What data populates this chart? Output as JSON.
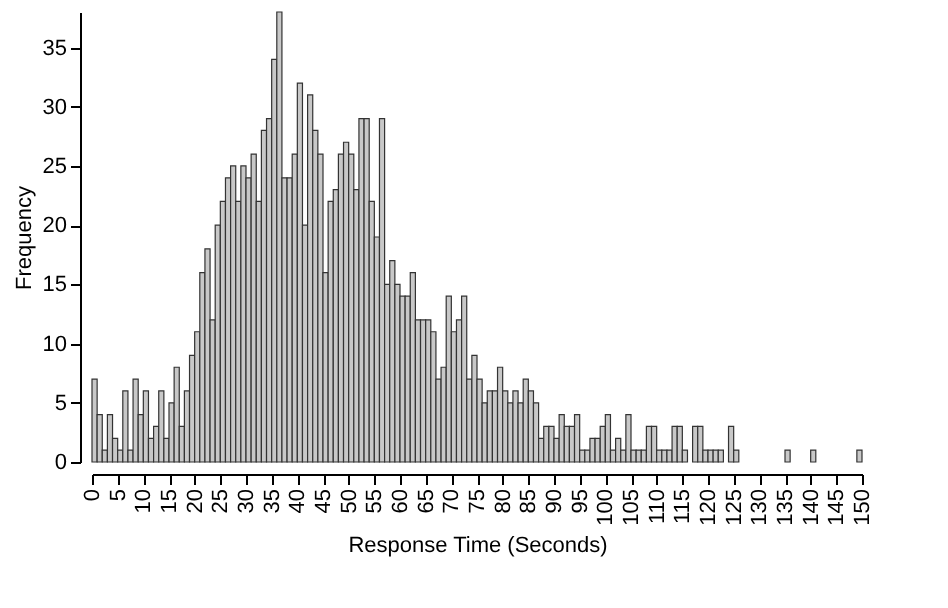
{
  "chart_data": {
    "type": "histogram",
    "xlabel": "Response Time (Seconds)",
    "ylabel": "Frequency",
    "bins": [
      0,
      1,
      2,
      3,
      4,
      5,
      6,
      7,
      8,
      9,
      10,
      11,
      12,
      13,
      14,
      15,
      16,
      17,
      18,
      19,
      20,
      21,
      22,
      23,
      24,
      25,
      26,
      27,
      28,
      29,
      30,
      31,
      32,
      33,
      34,
      35,
      36,
      37,
      38,
      39,
      40,
      41,
      42,
      43,
      44,
      45,
      46,
      47,
      48,
      49,
      50,
      51,
      52,
      53,
      54,
      55,
      56,
      57,
      58,
      59,
      60,
      61,
      62,
      63,
      64,
      65,
      66,
      67,
      68,
      69,
      70,
      71,
      72,
      73,
      74,
      75,
      76,
      77,
      78,
      79,
      80,
      81,
      82,
      83,
      84,
      85,
      86,
      87,
      88,
      89,
      90,
      91,
      92,
      93,
      94,
      95,
      96,
      97,
      98,
      99,
      100,
      101,
      102,
      103,
      104,
      105,
      106,
      107,
      108,
      109,
      110,
      111,
      112,
      113,
      114,
      115,
      116,
      117,
      118,
      119,
      120,
      121,
      122,
      123,
      124,
      125,
      126,
      127,
      128,
      129,
      130,
      131,
      132,
      133,
      134,
      135,
      136,
      137,
      138,
      139,
      140,
      141,
      142,
      143,
      144,
      145,
      146,
      147,
      148,
      149,
      150
    ],
    "values": [
      7,
      4,
      1,
      4,
      2,
      1,
      6,
      1,
      7,
      4,
      6,
      2,
      3,
      6,
      2,
      5,
      8,
      3,
      6,
      9,
      11,
      16,
      18,
      12,
      20,
      22,
      24,
      25,
      22,
      25,
      24,
      26,
      22,
      28,
      29,
      34,
      38,
      24,
      24,
      26,
      32,
      20,
      31,
      28,
      26,
      16,
      22,
      23,
      26,
      27,
      26,
      23,
      29,
      29,
      22,
      19,
      29,
      15,
      17,
      15,
      14,
      14,
      16,
      12,
      12,
      12,
      11,
      7,
      8,
      14,
      11,
      12,
      14,
      7,
      9,
      7,
      5,
      6,
      6,
      8,
      6,
      5,
      6,
      5,
      7,
      6,
      5,
      2,
      3,
      3,
      2,
      4,
      3,
      3,
      4,
      1,
      1,
      2,
      2,
      3,
      4,
      1,
      2,
      1,
      4,
      1,
      1,
      1,
      3,
      3,
      1,
      1,
      1,
      3,
      3,
      1,
      0,
      3,
      3,
      1,
      1,
      1,
      1,
      0,
      3,
      1,
      0,
      0,
      0,
      0,
      0,
      0,
      0,
      0,
      0,
      1,
      0,
      0,
      0,
      0,
      1,
      0,
      0,
      0,
      0,
      0,
      0,
      0,
      0,
      1
    ],
    "color": "#c8c8c8",
    "xlim": [
      0,
      150
    ],
    "xticks": [
      0,
      5,
      10,
      15,
      20,
      25,
      30,
      35,
      40,
      45,
      50,
      55,
      60,
      65,
      70,
      75,
      80,
      85,
      90,
      95,
      100,
      105,
      110,
      115,
      120,
      125,
      130,
      135,
      140,
      145,
      150
    ],
    "ylim": [
      0,
      38
    ],
    "yticks": [
      0,
      5,
      10,
      15,
      20,
      25,
      30,
      35
    ],
    "grid": false
  }
}
